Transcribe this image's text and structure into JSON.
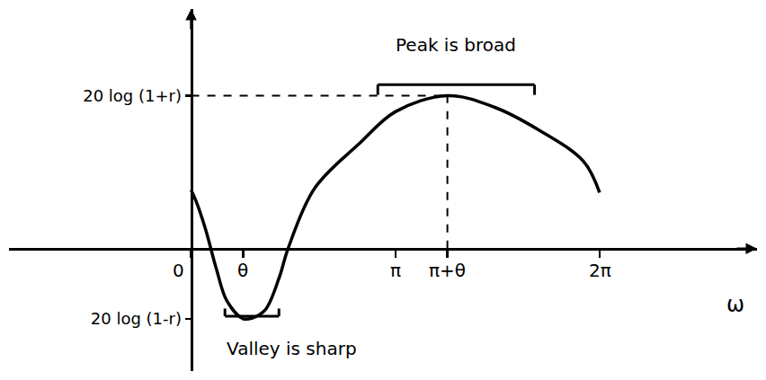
{
  "chart_data": {
    "type": "line",
    "x_label": "ω",
    "x": [
      0,
      0.08,
      0.22,
      0.39,
      0.55,
      0.8,
      0.94,
      1.14,
      1.35,
      1.49,
      1.9,
      2.59,
      3.14,
      3.94,
      4.66,
      5.34,
      6.03,
      6.28
    ],
    "values": [
      2.3,
      1.84,
      0.78,
      -0.81,
      -2.05,
      -2.75,
      -2.72,
      -2.4,
      -1.17,
      0,
      2.37,
      4.13,
      5.37,
      6,
      5.55,
      4.66,
      3.43,
      2.2
    ],
    "color": "#000000",
    "line_style": "solid",
    "xlim": [
      -2.8,
      8.7
    ],
    "xticks": [
      0,
      {
        "value": 0.8,
        "label": "θ"
      },
      {
        "value": 3.1416,
        "label": "π"
      },
      {
        "value": 3.94,
        "label": "π+θ"
      },
      {
        "value": 6.2832,
        "label": "2π"
      }
    ],
    "ylim": [
      -4.8,
      9.4
    ],
    "yticks": [
      {
        "value": -2.75,
        "label": "20 log (1-r)"
      },
      {
        "value": 6,
        "label": "20 log (1+r)"
      }
    ],
    "grid": false,
    "annotations": [
      {
        "text": "Peak is broad",
        "x": [
          2.87,
          5.28
        ],
        "y": 6.43
      },
      {
        "text": "Valley is sharp",
        "x": [
          0.52,
          1.35
        ],
        "y": -2.65
      }
    ],
    "guides": [
      {
        "x": 3.94,
        "y": 6
      }
    ]
  }
}
